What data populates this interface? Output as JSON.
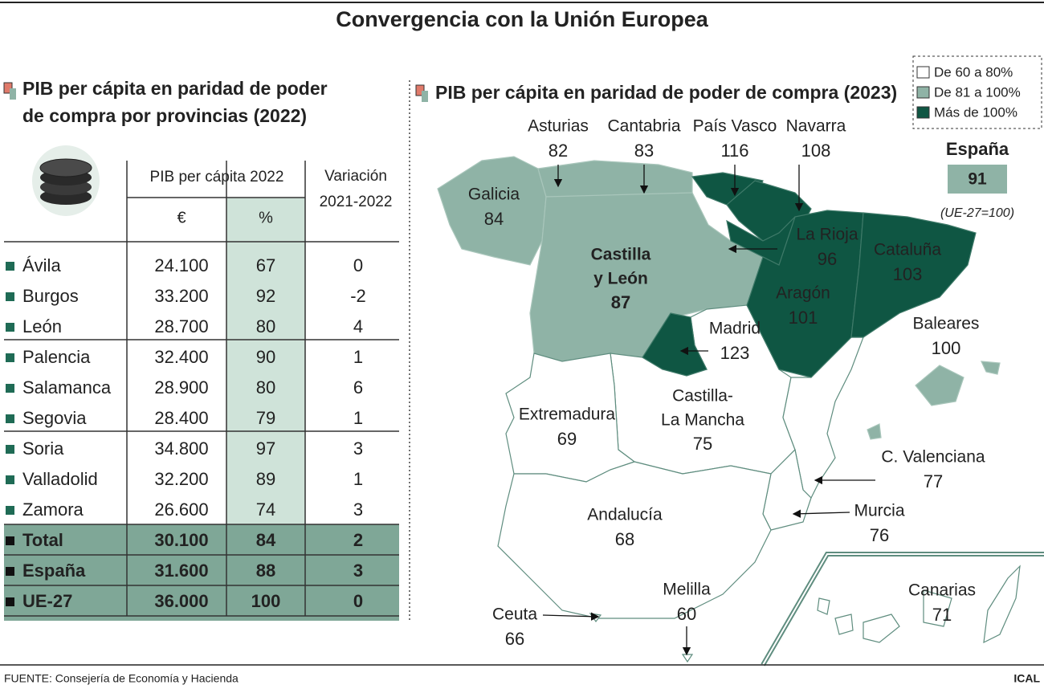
{
  "title": "Convergencia con la Unión Europea",
  "table_section": {
    "heading": [
      "PIB per cápita en paridad de poder",
      "de compra por provincias (2022)"
    ],
    "header": {
      "group": "PIB per cápita 2022",
      "euro": "€",
      "percent": "%",
      "variation": [
        "Variación",
        "2021-2022"
      ]
    },
    "rows": [
      [
        "Ávila",
        "24.100",
        "67",
        "0"
      ],
      [
        "Burgos",
        "33.200",
        "92",
        "-2"
      ],
      [
        "León",
        "28.700",
        "80",
        "4"
      ],
      [
        "Palencia",
        "32.400",
        "90",
        "1"
      ],
      [
        "Salamanca",
        "28.900",
        "80",
        "6"
      ],
      [
        "Segovia",
        "28.400",
        "79",
        "1"
      ],
      [
        "Soria",
        "34.800",
        "97",
        "3"
      ],
      [
        "Valladolid",
        "32.200",
        "89",
        "1"
      ],
      [
        "Zamora",
        "26.600",
        "74",
        "3"
      ]
    ],
    "summary_rows": [
      [
        "Total",
        "30.100",
        "84",
        "2"
      ],
      [
        "España",
        "31.600",
        "88",
        "3"
      ],
      [
        "UE-27",
        "36.000",
        "100",
        "0"
      ]
    ]
  },
  "map_section": {
    "heading": "PIB per cápita en paridad de poder de compra (2023)",
    "legend": [
      "De 60 a 80%",
      "De 81 a 100%",
      "Más de 100%"
    ],
    "spain": {
      "label": "España",
      "value": 91,
      "note": "(UE-27=100)"
    },
    "regions": [
      {
        "name": "Asturias",
        "value": 82
      },
      {
        "name": "Cantabria",
        "value": 83
      },
      {
        "name": "País Vasco",
        "value": 116
      },
      {
        "name": "Navarra",
        "value": 108
      },
      {
        "name": "Galicia",
        "value": 84
      },
      {
        "name": [
          "Castilla",
          "y León"
        ],
        "value": 87
      },
      {
        "name": "La Rioja",
        "value": 96
      },
      {
        "name": "Cataluña",
        "value": 103
      },
      {
        "name": "Aragón",
        "value": 101
      },
      {
        "name": "Madrid",
        "value": 123
      },
      {
        "name": "Baleares",
        "value": 100
      },
      {
        "name": "Extremadura",
        "value": 69
      },
      {
        "name": [
          "Castilla-",
          "La Mancha"
        ],
        "value": 75
      },
      {
        "name": "C. Valenciana",
        "value": 77
      },
      {
        "name": "Murcia",
        "value": 76
      },
      {
        "name": "Andalucía",
        "value": 68
      },
      {
        "name": "Ceuta",
        "value": 66
      },
      {
        "name": "Melilla",
        "value": 60
      },
      {
        "name": "Canarias",
        "value": 71
      }
    ]
  },
  "footer": {
    "source": "FUENTE: Consejería de Economía y Hacienda",
    "credit": "ICAL"
  }
}
